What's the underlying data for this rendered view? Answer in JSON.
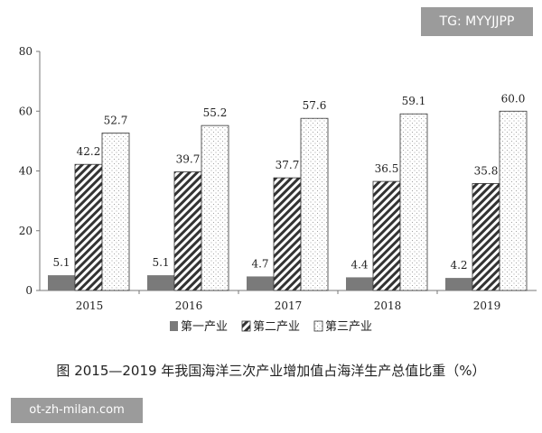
{
  "watermarks": {
    "top": "TG: MYYJJPP",
    "bottom": "ot-zh-milan.com"
  },
  "caption": "图  2015—2019 年我国海洋三次产业增加值占海洋生产总值比重（%）",
  "chart_data": {
    "type": "bar",
    "categories": [
      "2015",
      "2016",
      "2017",
      "2018",
      "2019"
    ],
    "series": [
      {
        "name": "第一产业",
        "values": [
          5.1,
          5.1,
          4.7,
          4.4,
          4.2
        ],
        "labels": [
          "5.1",
          "5.1",
          "4.7",
          "4.4",
          "4.2"
        ],
        "pattern": "solid-gray"
      },
      {
        "name": "第二产业",
        "values": [
          42.2,
          39.7,
          37.7,
          36.5,
          35.8
        ],
        "labels": [
          "42.2",
          "39.7",
          "37.7",
          "36.5",
          "35.8"
        ],
        "pattern": "diagonal-hatch"
      },
      {
        "name": "第三产业",
        "values": [
          52.7,
          55.2,
          57.6,
          59.1,
          60.0
        ],
        "labels": [
          "52.7",
          "55.2",
          "57.6",
          "59.1",
          "60.0"
        ],
        "pattern": "dotted"
      }
    ],
    "ylim": [
      0,
      80
    ],
    "yticks": [
      0,
      20,
      40,
      60,
      80
    ],
    "grid": false,
    "legend_position": "bottom-center",
    "colors": {
      "axis": "#777777",
      "solid": "#7a7a7a",
      "hatch": "#333333",
      "dots": "#999999",
      "text": "#222222"
    }
  }
}
